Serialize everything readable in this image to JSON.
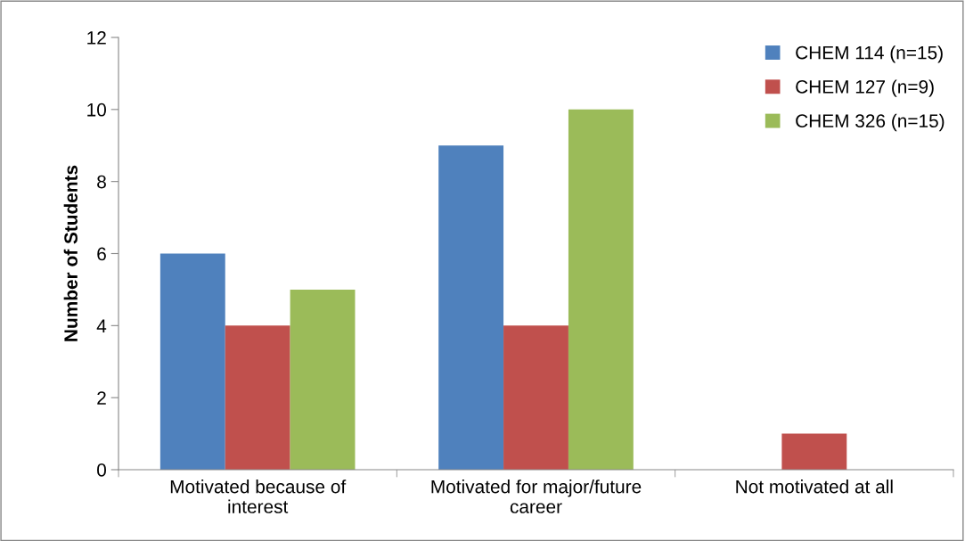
{
  "chart_data": {
    "type": "bar",
    "ylabel": "Number of Students",
    "categories": [
      "Motivated because of\ninterest",
      "Motivated for major/future\ncareer",
      "Not motivated at all"
    ],
    "series": [
      {
        "name": "CHEM 114 (n=15)",
        "color": "#4f81bd",
        "values": [
          6,
          9,
          0
        ]
      },
      {
        "name": "CHEM 127 (n=9)",
        "color": "#c0504d",
        "values": [
          4,
          4,
          1
        ]
      },
      {
        "name": "CHEM 326 (n=15)",
        "color": "#9bbb59",
        "values": [
          5,
          10,
          0
        ]
      }
    ],
    "ylim": [
      0,
      12
    ],
    "yticks": [
      0,
      2,
      4,
      6,
      8,
      10,
      12
    ],
    "grid": false,
    "legend": "top right"
  }
}
